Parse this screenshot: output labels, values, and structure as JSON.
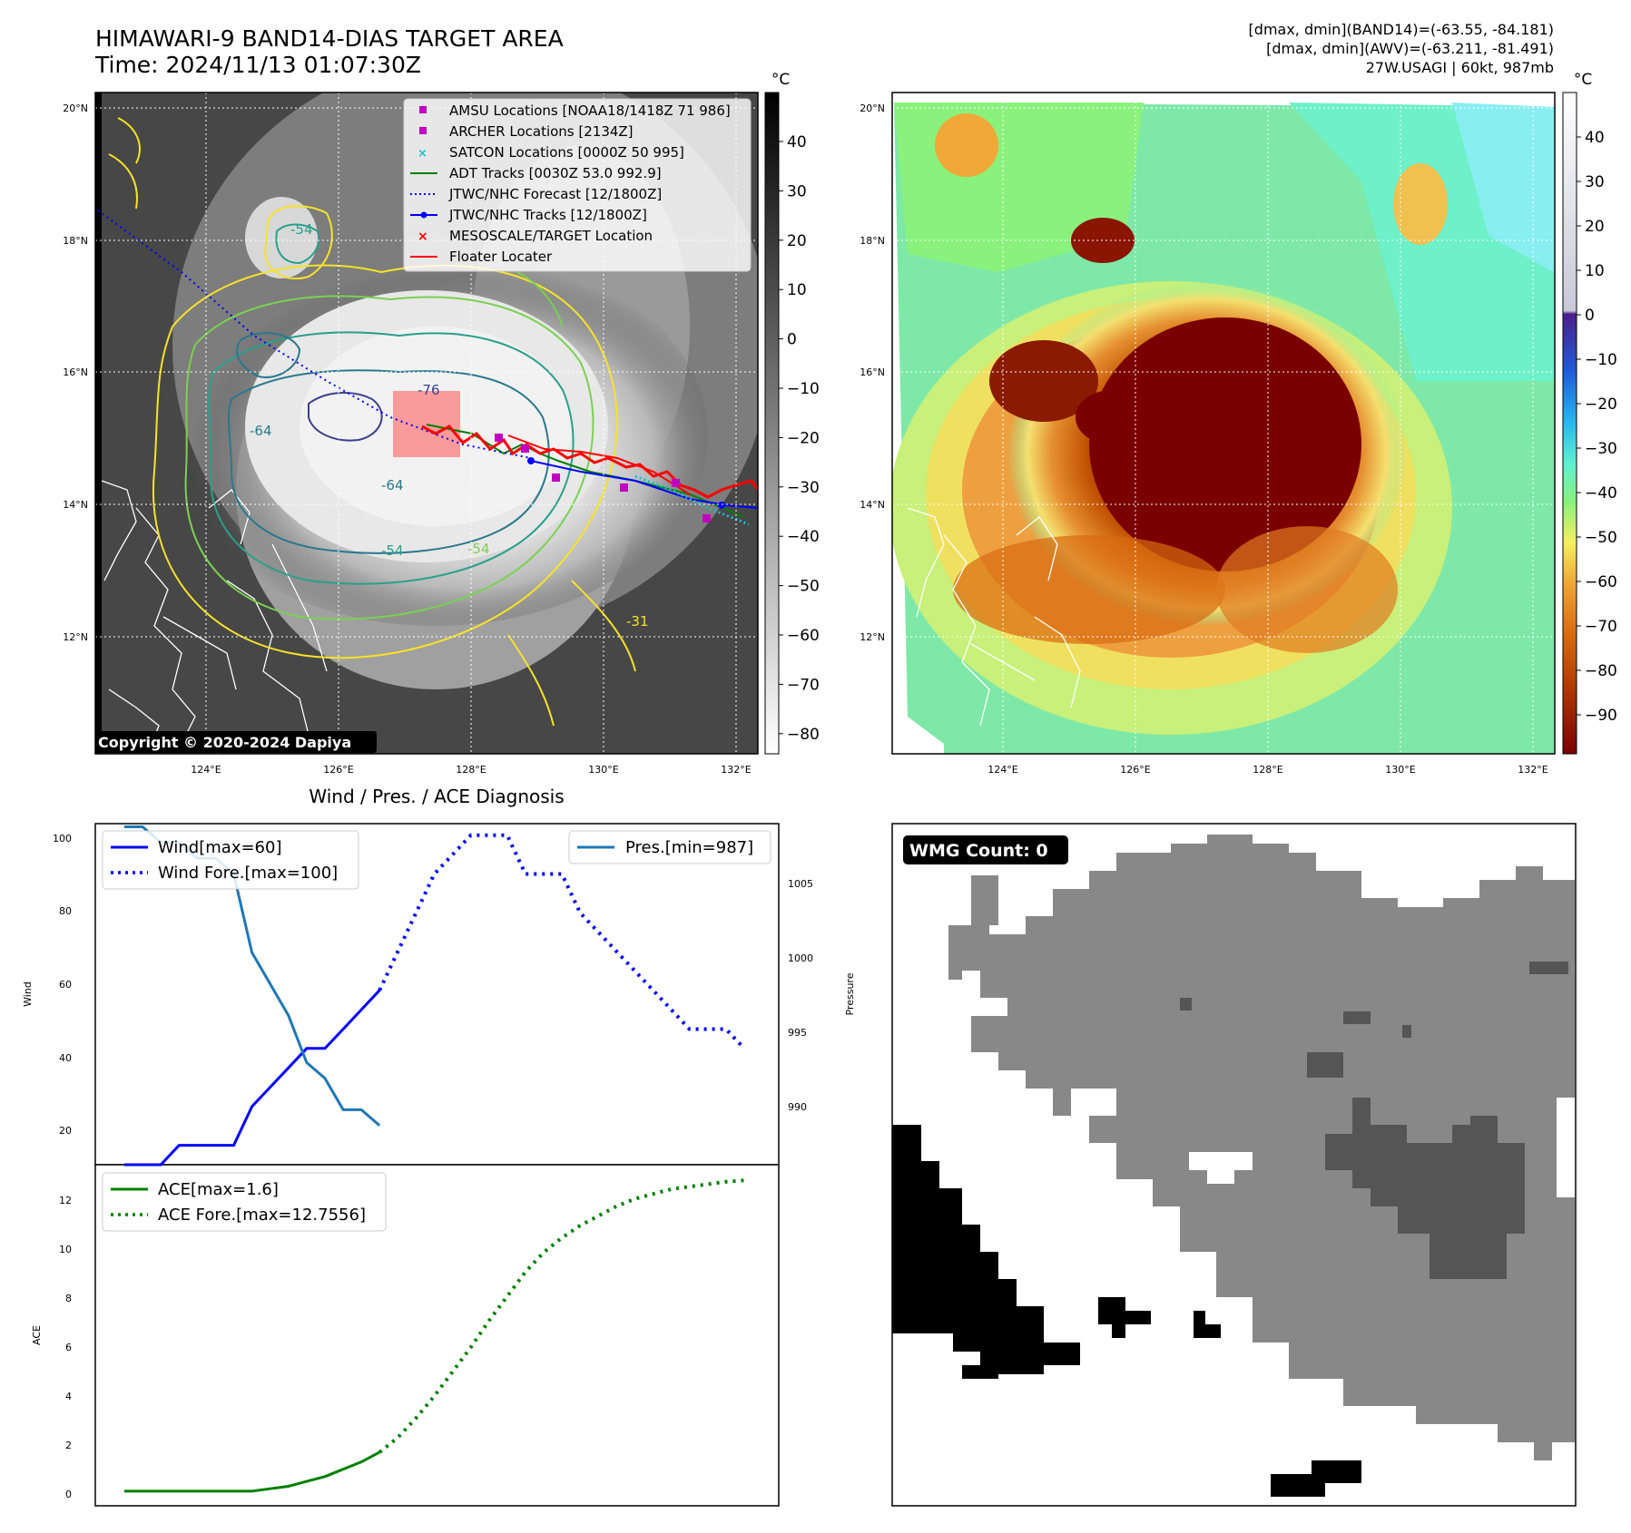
{
  "header": {
    "title_line1": "HIMAWARI-9 BAND14-DIAS TARGET AREA",
    "title_line2": "Time: 2024/11/13 01:07:30Z",
    "info_line1": "[dmax, dmin](BAND14)=(-63.55, -84.181)",
    "info_line2": "[dmax, dmin](AWV)=(-63.211, -81.491)",
    "info_line3": "27W.USAGI | 60kt, 987mb"
  },
  "map_axes": {
    "lat_labels": [
      "20°N",
      "18°N",
      "16°N",
      "14°N",
      "12°N"
    ],
    "lon_labels": [
      "124°E",
      "126°E",
      "128°E",
      "130°E",
      "132°E"
    ],
    "copyright": "Copyright © 2020-2024 Dapiya"
  },
  "legend": {
    "items": [
      {
        "label": "AMSU Locations [NOAA18/1418Z 71 986]",
        "color": "#c000c0",
        "marker": "square"
      },
      {
        "label": "ARCHER Locations [2134Z]",
        "color": "#c000c0",
        "marker": "square"
      },
      {
        "label": "SATCON Locations [0000Z 50 995]",
        "color": "#17becf",
        "marker": "x"
      },
      {
        "label": "ADT Tracks [0030Z 53.0 992.9]",
        "color": "#008000",
        "marker": "line"
      },
      {
        "label": "JTWC/NHC Forecast [12/1800Z]",
        "color": "#0000ff",
        "marker": "dotted"
      },
      {
        "label": "JTWC/NHC Tracks [12/1800Z]",
        "color": "#0000ff",
        "marker": "line-dot"
      },
      {
        "label": "MESOSCALE/TARGET Location",
        "color": "#ff0000",
        "marker": "x"
      },
      {
        "label": "Floater Locater",
        "color": "#ff0000",
        "marker": "line"
      }
    ]
  },
  "contour_labels": [
    "-54",
    "-64",
    "-76",
    "-64",
    "-54",
    "-54",
    "-31"
  ],
  "colorbar_left": {
    "unit": "°C",
    "ticks": [
      "40",
      "30",
      "20",
      "10",
      "0",
      "−10",
      "−20",
      "−30",
      "−40",
      "−50",
      "−60",
      "−70",
      "−80"
    ]
  },
  "colorbar_right": {
    "unit": "°C",
    "ticks": [
      "40",
      "30",
      "20",
      "10",
      "0",
      "−10",
      "−20",
      "−30",
      "−40",
      "−50",
      "−60",
      "−70",
      "−80",
      "−90"
    ]
  },
  "diagnosis": {
    "title": "Wind / Pres. / ACE Diagnosis",
    "wind_ylabel": "Wind",
    "pres_ylabel": "Pressure",
    "ace_ylabel": "ACE",
    "wind_ticks": [
      "100",
      "80",
      "60",
      "40",
      "20"
    ],
    "pres_ticks": [
      "1005",
      "1000",
      "995",
      "990"
    ],
    "ace_ticks": [
      "12",
      "10",
      "8",
      "6",
      "4",
      "2",
      "0"
    ],
    "legend_wind": "Wind[max=60]",
    "legend_wind_fore": "Wind Fore.[max=100]",
    "legend_pres": "Pres.[min=987]",
    "legend_ace": "ACE[max=1.6]",
    "legend_ace_fore": "ACE Fore.[max=12.7556]",
    "colors": {
      "wind": "#0000ff",
      "pres": "#1f77b4",
      "ace": "#008000"
    }
  },
  "wmg": {
    "label": "WMG Count: 0"
  },
  "chart_data": [
    {
      "type": "line",
      "title": "Wind / Pres. / ACE Diagnosis",
      "ylabel": "Wind",
      "ylim": [
        15,
        103
      ],
      "series": [
        {
          "name": "Wind[max=60]",
          "x": [
            0,
            1,
            2,
            3,
            4,
            5,
            6,
            7,
            8,
            9,
            10,
            11,
            12,
            13,
            14
          ],
          "values": [
            15,
            15,
            15,
            20,
            20,
            20,
            20,
            30,
            35,
            40,
            45,
            45,
            50,
            55,
            60
          ]
        },
        {
          "name": "Wind Fore.[max=100]",
          "x": [
            14,
            15,
            16,
            17,
            18,
            19,
            20,
            21,
            22,
            23,
            24,
            25,
            26,
            27,
            28,
            29,
            30,
            31,
            32,
            33,
            34
          ],
          "values": [
            60,
            70,
            80,
            90,
            95,
            100,
            100,
            100,
            90,
            90,
            90,
            80,
            75,
            70,
            65,
            60,
            55,
            50,
            50,
            50,
            45
          ]
        }
      ]
    },
    {
      "type": "line",
      "ylabel": "Pressure",
      "ylim": [
        986.5,
        1008.2
      ],
      "series": [
        {
          "name": "Pres.[min=987]",
          "x": [
            0,
            1,
            2,
            3,
            4,
            5,
            6,
            7,
            8,
            9,
            10,
            11,
            12,
            13,
            14
          ],
          "values": [
            1008,
            1008,
            1007,
            1007,
            1006,
            1006,
            1005,
            1000,
            998,
            996,
            993,
            992,
            990,
            990,
            989
          ]
        }
      ]
    },
    {
      "type": "line",
      "ylabel": "ACE",
      "ylim": [
        -0.6,
        13.4
      ],
      "series": [
        {
          "name": "ACE[max=1.6]",
          "x": [
            0,
            1,
            2,
            3,
            4,
            5,
            6,
            7,
            8,
            9,
            10,
            11,
            12,
            13,
            14
          ],
          "values": [
            0,
            0,
            0,
            0,
            0,
            0,
            0,
            0,
            0.1,
            0.2,
            0.4,
            0.6,
            0.9,
            1.2,
            1.6
          ]
        },
        {
          "name": "ACE Fore.[max=12.7556]",
          "x": [
            14,
            15,
            16,
            17,
            18,
            19,
            20,
            21,
            22,
            23,
            24,
            25,
            26,
            27,
            28,
            29,
            30,
            31,
            32,
            33,
            34
          ],
          "values": [
            1.6,
            2.2,
            3.0,
            3.9,
            4.9,
            5.9,
            7.0,
            8.0,
            9.0,
            9.8,
            10.4,
            10.9,
            11.3,
            11.7,
            12.0,
            12.2,
            12.4,
            12.5,
            12.6,
            12.7,
            12.76
          ]
        }
      ]
    }
  ]
}
